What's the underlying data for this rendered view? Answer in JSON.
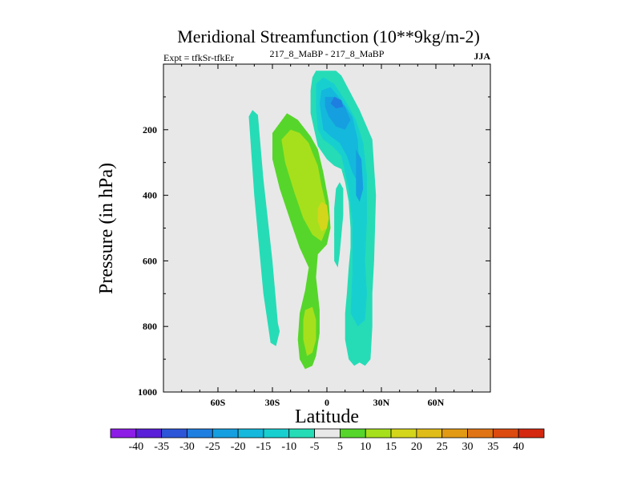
{
  "chart_data": {
    "type": "contour",
    "title": "Meridional Streamfunction (10**9kg/m-2)",
    "subtitle_left": "Expt = tfkSr-tfkEr",
    "subtitle_center": "217_8_MaBP - 217_8_MaBP",
    "subtitle_right": "JJA",
    "xlabel": "Latitude",
    "ylabel": "Pressure (in hPa)",
    "xlim": [
      -90,
      90
    ],
    "ylim": [
      1000,
      0
    ],
    "x_ticks": [
      {
        "value": -60,
        "label": "60S"
      },
      {
        "value": -30,
        "label": "30S"
      },
      {
        "value": 0,
        "label": "0"
      },
      {
        "value": 30,
        "label": "30N"
      },
      {
        "value": 60,
        "label": "60N"
      }
    ],
    "y_ticks": [
      {
        "value": 200,
        "label": "200"
      },
      {
        "value": 400,
        "label": "400"
      },
      {
        "value": 600,
        "label": "600"
      },
      {
        "value": 800,
        "label": "800"
      },
      {
        "value": 1000,
        "label": "1000"
      }
    ],
    "background_color": "#e8e8e8",
    "colorbar": {
      "labels": [
        "-40",
        "-35",
        "-30",
        "-25",
        "-20",
        "-15",
        "-10",
        "-5",
        "5",
        "10",
        "15",
        "20",
        "25",
        "30",
        "35",
        "40"
      ],
      "colors": [
        "#8c1ce6",
        "#5a1fd8",
        "#2c55d8",
        "#1f7fe0",
        "#169fe0",
        "#14b8dc",
        "#18cfd0",
        "#26dcb6",
        "#e8e8e8",
        "#56d62a",
        "#a6e01c",
        "#d4d61c",
        "#e0bc18",
        "#e29a14",
        "#e07414",
        "#dc4a10",
        "#d42810"
      ]
    },
    "regions": [
      {
        "level": "-5",
        "color": "#26dcb6",
        "points": [
          [
            -41,
            140
          ],
          [
            -38,
            155
          ],
          [
            -35,
            350
          ],
          [
            -30,
            600
          ],
          [
            -27,
            790
          ],
          [
            -26,
            815
          ],
          [
            -28,
            860
          ],
          [
            -31,
            850
          ],
          [
            -35,
            700
          ],
          [
            -40,
            400
          ],
          [
            -43,
            160
          ]
        ]
      },
      {
        "level": "5",
        "color": "#56d62a",
        "points": [
          [
            -30,
            210
          ],
          [
            -22,
            150
          ],
          [
            -16,
            170
          ],
          [
            -9,
            220
          ],
          [
            -5,
            260
          ],
          [
            -2,
            330
          ],
          [
            1,
            420
          ],
          [
            2,
            500
          ],
          [
            0,
            550
          ],
          [
            -5,
            580
          ],
          [
            -6,
            650
          ],
          [
            -5,
            700
          ],
          [
            -4,
            750
          ],
          [
            -4,
            820
          ],
          [
            -6,
            890
          ],
          [
            -8,
            920
          ],
          [
            -12,
            930
          ],
          [
            -15,
            900
          ],
          [
            -16,
            840
          ],
          [
            -15,
            760
          ],
          [
            -12,
            690
          ],
          [
            -10,
            620
          ],
          [
            -15,
            560
          ],
          [
            -20,
            480
          ],
          [
            -26,
            380
          ],
          [
            -30,
            290
          ]
        ]
      },
      {
        "level": "10",
        "color": "#a6e01c",
        "points": [
          [
            -25,
            230
          ],
          [
            -20,
            200
          ],
          [
            -15,
            210
          ],
          [
            -10,
            240
          ],
          [
            -8,
            270
          ],
          [
            -5,
            310
          ],
          [
            -3,
            370
          ],
          [
            0,
            440
          ],
          [
            0,
            500
          ],
          [
            -3,
            540
          ],
          [
            -8,
            520
          ],
          [
            -13,
            470
          ],
          [
            -18,
            390
          ],
          [
            -23,
            300
          ]
        ]
      },
      {
        "level": "15",
        "color": "#d4d61c",
        "points": [
          [
            -3,
            420
          ],
          [
            0,
            430
          ],
          [
            1,
            470
          ],
          [
            0,
            500
          ],
          [
            -3,
            510
          ],
          [
            -5,
            480
          ],
          [
            -5,
            440
          ]
        ]
      },
      {
        "level": "10",
        "color": "#a6e01c",
        "points": [
          [
            -12,
            750
          ],
          [
            -8,
            740
          ],
          [
            -6,
            780
          ],
          [
            -6,
            840
          ],
          [
            -8,
            880
          ],
          [
            -11,
            890
          ],
          [
            -13,
            840
          ],
          [
            -13,
            780
          ]
        ]
      },
      {
        "level": "5",
        "color": "#56d62a",
        "points": [
          [
            5,
            480
          ],
          [
            7,
            490
          ],
          [
            8,
            520
          ],
          [
            7,
            560
          ],
          [
            5,
            560
          ],
          [
            4,
            520
          ]
        ]
      },
      {
        "level": "-5",
        "color": "#26dcb6",
        "points": [
          [
            -8,
            40
          ],
          [
            -6,
            20
          ],
          [
            5,
            20
          ],
          [
            8,
            35
          ],
          [
            18,
            140
          ],
          [
            25,
            230
          ],
          [
            27,
            400
          ],
          [
            26,
            600
          ],
          [
            25,
            700
          ],
          [
            25,
            800
          ],
          [
            24,
            900
          ],
          [
            21,
            920
          ],
          [
            18,
            910
          ],
          [
            15,
            920
          ],
          [
            12,
            900
          ],
          [
            10,
            840
          ],
          [
            10,
            760
          ],
          [
            11,
            700
          ],
          [
            12,
            620
          ],
          [
            13,
            560
          ],
          [
            13,
            500
          ],
          [
            12,
            420
          ],
          [
            10,
            360
          ],
          [
            8,
            320
          ],
          [
            4,
            310
          ],
          [
            0,
            290
          ],
          [
            -5,
            250
          ],
          [
            -7,
            200
          ],
          [
            -9,
            150
          ],
          [
            -9,
            80
          ]
        ]
      },
      {
        "level": "-5",
        "color": "#26dcb6",
        "points": [
          [
            5,
            380
          ],
          [
            7,
            360
          ],
          [
            9,
            380
          ],
          [
            9,
            460
          ],
          [
            8,
            520
          ],
          [
            7,
            580
          ],
          [
            6,
            620
          ],
          [
            4,
            600
          ],
          [
            4,
            500
          ],
          [
            4,
            440
          ]
        ]
      },
      {
        "level": "-10",
        "color": "#18cfd0",
        "points": [
          [
            -6,
            60
          ],
          [
            -2,
            40
          ],
          [
            4,
            60
          ],
          [
            10,
            110
          ],
          [
            16,
            170
          ],
          [
            20,
            240
          ],
          [
            22,
            340
          ],
          [
            22,
            480
          ],
          [
            21,
            600
          ],
          [
            22,
            700
          ],
          [
            21,
            780
          ],
          [
            17,
            800
          ],
          [
            13,
            760
          ],
          [
            14,
            640
          ],
          [
            14,
            560
          ],
          [
            14,
            480
          ],
          [
            12,
            380
          ],
          [
            8,
            280
          ],
          [
            3,
            250
          ],
          [
            -2,
            230
          ],
          [
            -5,
            200
          ],
          [
            -6,
            140
          ]
        ]
      },
      {
        "level": "-15",
        "color": "#14b8dc",
        "points": [
          [
            -3,
            80
          ],
          [
            2,
            70
          ],
          [
            8,
            110
          ],
          [
            14,
            160
          ],
          [
            17,
            230
          ],
          [
            18,
            330
          ],
          [
            17,
            360
          ],
          [
            14,
            330
          ],
          [
            11,
            280
          ],
          [
            7,
            240
          ],
          [
            2,
            220
          ],
          [
            -2,
            200
          ],
          [
            -3,
            160
          ],
          [
            -4,
            120
          ]
        ]
      },
      {
        "level": "-20",
        "color": "#169fe0",
        "points": [
          [
            -1,
            100
          ],
          [
            5,
            100
          ],
          [
            10,
            130
          ],
          [
            13,
            170
          ],
          [
            10,
            200
          ],
          [
            5,
            190
          ],
          [
            1,
            160
          ],
          [
            -1,
            130
          ]
        ]
      },
      {
        "level": "-20",
        "color": "#169fe0",
        "points": [
          [
            16,
            260
          ],
          [
            19,
            290
          ],
          [
            20,
            380
          ],
          [
            18,
            420
          ],
          [
            16,
            400
          ],
          [
            16,
            330
          ]
        ]
      },
      {
        "level": "-25",
        "color": "#1f7fe0",
        "points": [
          [
            4,
            100
          ],
          [
            8,
            110
          ],
          [
            9,
            130
          ],
          [
            5,
            135
          ],
          [
            2,
            120
          ]
        ]
      }
    ]
  }
}
